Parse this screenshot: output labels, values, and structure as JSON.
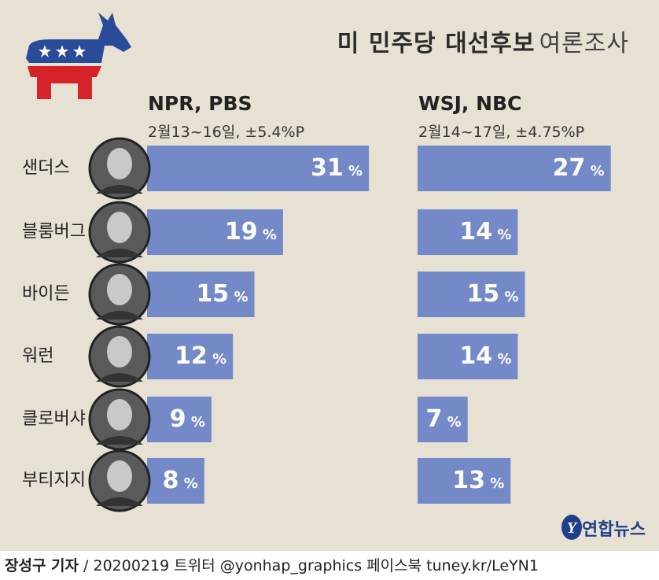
{
  "title": {
    "bold": "미 민주당 대선후보",
    "light": "여론조사"
  },
  "polls": [
    {
      "name": "NPR, PBS",
      "sub": "2월13~16일,  ±5.4%P"
    },
    {
      "name": "WSJ, NBC",
      "sub": "2월14~17일,  ±4.75%P"
    }
  ],
  "chart_data": {
    "type": "bar",
    "orientation": "horizontal",
    "categories": [
      "샌더스",
      "블룸버그",
      "바이든",
      "워런",
      "클로버샤",
      "부티지지"
    ],
    "series": [
      {
        "name": "NPR, PBS",
        "values": [
          31,
          19,
          15,
          12,
          9,
          8
        ]
      },
      {
        "name": "WSJ, NBC",
        "values": [
          27,
          14,
          15,
          14,
          7,
          13
        ]
      }
    ],
    "unit": "%",
    "bar_color": "#7389c8"
  },
  "footer": {
    "reporter": "장성구 기자",
    "rest": " / 20200219  트위터 @yonhap_graphics  페이스북 tuney.kr/LeYN1"
  },
  "logo": {
    "text": "연합뉴스",
    "icon": "yonhap-logo-icon"
  },
  "mascot": {
    "icon": "democrat-donkey-icon",
    "colors": [
      "#2a4a9a",
      "#d6232a",
      "#ffffff"
    ]
  }
}
